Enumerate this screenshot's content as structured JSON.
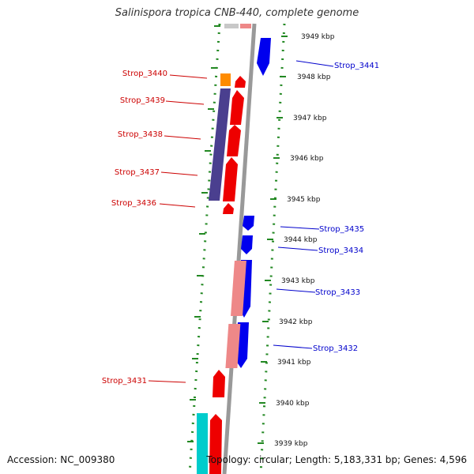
{
  "title": "Salinispora tropica CNB-440, complete genome",
  "accession": "Accession: NC_009380",
  "summary": "Topology: circular; Length: 5,183,331 bp; Genes: 4,596",
  "colors": {
    "forward": "#ff0000",
    "reverse": "#0000ff",
    "label_forward": "#cc0000",
    "label_reverse": "#0000cc",
    "gc_purple": "#4a3f8f",
    "orange": "#ff8c00",
    "cyan": "#00cccc",
    "pink": "#ee8888",
    "grey_block": "#c8c8c8",
    "axis": "#999999",
    "ticks": "#228822"
  },
  "kbp_labels": [
    "3949 kbp",
    "3948 kbp",
    "3947 kbp",
    "3946 kbp",
    "3945 kbp",
    "3944 kbp",
    "3943 kbp",
    "3942 kbp",
    "3941 kbp",
    "3940 kbp",
    "3939 kbp"
  ],
  "left_genes": [
    "Strop_3440",
    "Strop_3439",
    "Strop_3438",
    "Strop_3437",
    "Strop_3436",
    "Strop_3431"
  ],
  "right_genes": [
    "Strop_3441",
    "Strop_3435",
    "Strop_3434",
    "Strop_3433",
    "Strop_3432"
  ]
}
